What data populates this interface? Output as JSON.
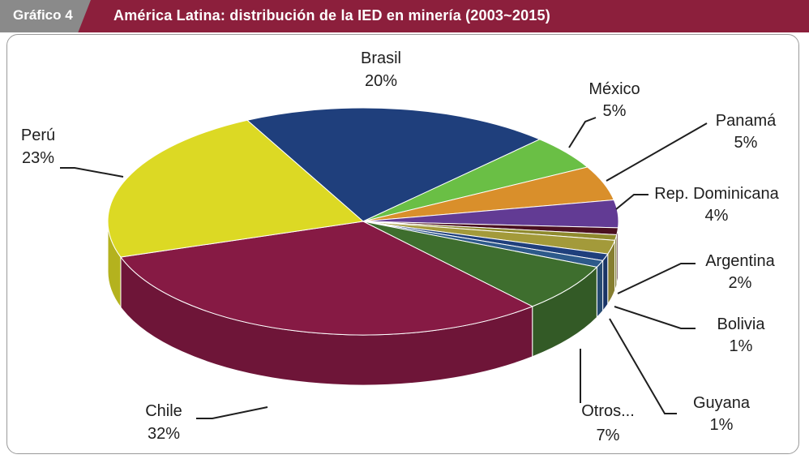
{
  "header": {
    "tag": "Gráfico 4",
    "title": "América Latina: distribución de la IED en minería (2003~2015)"
  },
  "chart_data": {
    "type": "pie",
    "title": "América Latina: distribución de la IED en minería (2003~2015)",
    "slices": [
      {
        "name": "Brasil",
        "value": 20,
        "label": "20%",
        "color": "#1f3f7c"
      },
      {
        "name": "México",
        "value": 5,
        "label": "5%",
        "color": "#6abf45"
      },
      {
        "name": "Panamá",
        "value": 5,
        "label": "5%",
        "color": "#d98f2b"
      },
      {
        "name": "Rep. Dominicana",
        "value": 4,
        "label": "4%",
        "color": "#623b94"
      },
      {
        "name": "",
        "value": 1,
        "label": "",
        "color": "#4a1020"
      },
      {
        "name": "",
        "value": 0.8,
        "label": "",
        "color": "#8f8a2e"
      },
      {
        "name": "Argentina",
        "value": 2,
        "label": "2%",
        "color": "#a39a3a"
      },
      {
        "name": "Bolivia",
        "value": 1,
        "label": "1%",
        "color": "#1f3f7c"
      },
      {
        "name": "Guyana",
        "value": 1,
        "label": "1%",
        "color": "#2e5a8a"
      },
      {
        "name": "Otros...",
        "value": 7,
        "label": "7%",
        "color": "#3e6e2e"
      },
      {
        "name": "Chile",
        "value": 32,
        "label": "32%",
        "color": "#861a44"
      },
      {
        "name": "Perú",
        "value": 23,
        "label": "23%",
        "color": "#dcd924"
      }
    ]
  }
}
